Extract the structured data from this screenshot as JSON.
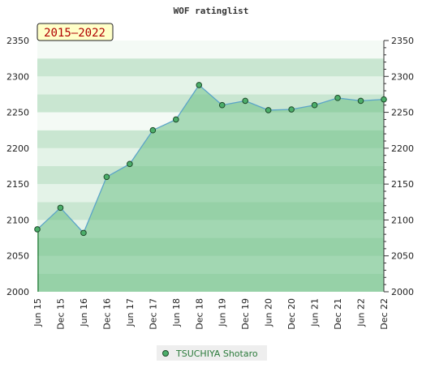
{
  "chart_data": {
    "type": "area",
    "title": "WOF ratinglist",
    "period_label": "2015–2022",
    "x_labels": [
      "Jun 15",
      "Dec 15",
      "Jun 16",
      "Dec 16",
      "Jun 17",
      "Dec 17",
      "Jun 18",
      "Dec 18",
      "Jun 19",
      "Dec 19",
      "Jun 20",
      "Dec 20",
      "Jun 21",
      "Dec 21",
      "Jun 22",
      "Dec 22"
    ],
    "y_ticks": [
      2000,
      2050,
      2100,
      2150,
      2200,
      2250,
      2300,
      2350
    ],
    "ylim": [
      2000,
      2350
    ],
    "series": [
      {
        "name": "TSUCHIYA Shotaro",
        "values": [
          2087,
          2117,
          2082,
          2160,
          2178,
          2225,
          2240,
          2288,
          2260,
          2266,
          2253,
          2254,
          2260,
          2270,
          2266,
          2268
        ]
      }
    ],
    "legend_position": "bottom-center",
    "grid": true,
    "colors": {
      "line": "#5ba4c8",
      "marker": "#4cae6a",
      "area": "#6cbf85",
      "band_dark": "#c9e6d1",
      "band_light": "#e4f3e8",
      "band_white": "#f4faf5",
      "period_bg": "#ffffc8"
    }
  }
}
